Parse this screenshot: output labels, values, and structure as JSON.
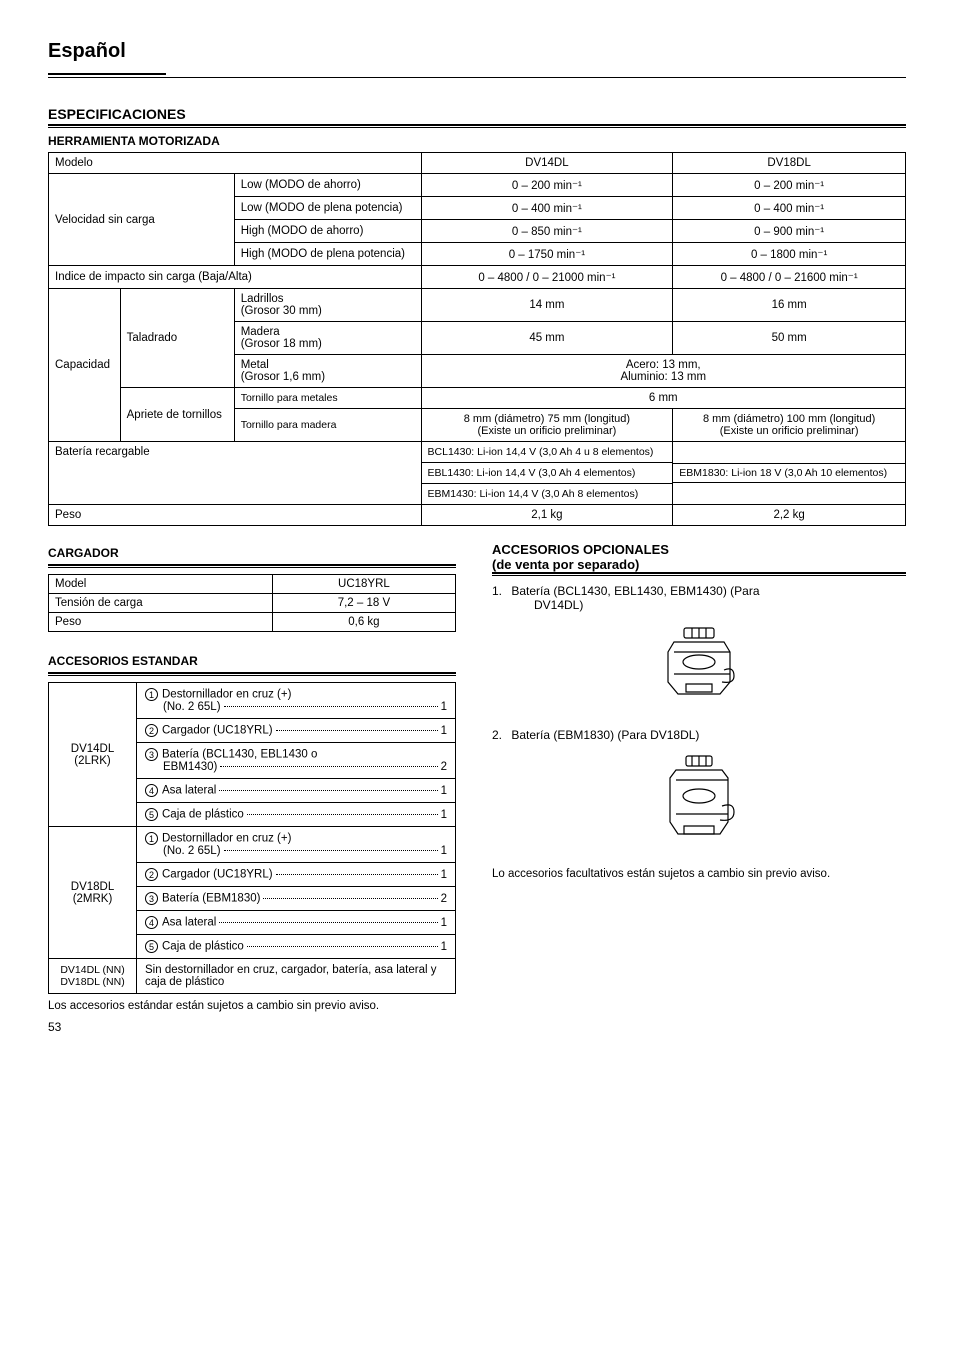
{
  "lang_header": "Español",
  "sections": {
    "espec": "ESPECIFICACIONES",
    "herramienta": "HERRAMIENTA MOTORIZADA",
    "cargador": "CARGADOR",
    "acc_estandar": "ACCESORIOS ESTANDAR",
    "acc_opcionales": "ACCESORIOS OPCIONALES",
    "acc_opcionales_sub": "(de venta por separado)"
  },
  "spec": {
    "rows": {
      "modelo": "Modelo",
      "velocidad": "Velocidad sin carga",
      "low_ahorro": "Low (MODO de ahorro)",
      "low_plena": "Low (MODO de plena potencia)",
      "high_ahorro": "High (MODO de ahorro)",
      "high_plena": "High (MODO de plena potencia)",
      "indice": "Indice de impacto sin carga (Baja/Alta)",
      "capacidad": "Capacidad",
      "taladrado": "Taladrado",
      "ladrillos": "Ladrillos\n(Grosor 30 mm)",
      "madera": "Madera\n(Grosor 18 mm)",
      "metal": "Metal\n(Grosor 1,6 mm)",
      "apriete": "Apriete de tornillos",
      "t_metales": "Tornillo para metales",
      "t_madera": "Tornillo para madera",
      "bateria": "Batería recargable",
      "peso": "Peso"
    },
    "cols": {
      "dv14": "DV14DL",
      "dv18": "DV18DL"
    },
    "vals": {
      "low_ahorro": {
        "dv14": "0 – 200 min⁻¹",
        "dv18": "0 – 200 min⁻¹"
      },
      "low_plena": {
        "dv14": "0 – 400 min⁻¹",
        "dv18": "0 – 400 min⁻¹"
      },
      "high_ahorro": {
        "dv14": "0 – 850 min⁻¹",
        "dv18": "0 – 900 min⁻¹"
      },
      "high_plena": {
        "dv14": "0 – 1750 min⁻¹",
        "dv18": "0 – 1800 min⁻¹"
      },
      "indice": {
        "dv14": "0 – 4800 / 0 – 21000 min⁻¹",
        "dv18": "0 – 4800 / 0 – 21600 min⁻¹"
      },
      "ladrillos": {
        "dv14": "14 mm",
        "dv18": "16 mm"
      },
      "madera": {
        "dv14": "45 mm",
        "dv18": "50 mm"
      },
      "metal": "Acero: 13 mm,\nAluminio: 13 mm",
      "t_metales": "6 mm",
      "t_madera": {
        "dv14": "8 mm (diámetro)   75 mm (longitud)\n(Existe un orificio preliminar)",
        "dv18": "8 mm (diámetro)   100 mm (longitud)\n(Existe un orificio preliminar)"
      },
      "bateria_dv14_1": "BCL1430: Li-ion 14,4 V (3,0 Ah 4 u 8 elementos)",
      "bateria_dv14_2": "EBL1430: Li-ion 14,4 V (3,0 Ah 4 elementos)",
      "bateria_dv14_3": "EBM1430: Li-ion 14,4 V (3,0 Ah 8 elementos)",
      "bateria_dv18": "EBM1830: Li-ion 18 V (3,0 Ah 10 elementos)",
      "peso": {
        "dv14": "2,1 kg",
        "dv18": "2,2 kg"
      }
    }
  },
  "charger": {
    "model_label": "Model",
    "model_val": "UC18YRL",
    "tension_label": "Tensión de carga",
    "tension_val": "7,2 – 18 V",
    "peso_label": "Peso",
    "peso_val": "0,6 kg"
  },
  "accessories": {
    "dv14": {
      "model": "DV14DL\n(2LRK)",
      "items": [
        {
          "n": "1",
          "label": "Destornillador en cruz (+)\n(No. 2   65L)",
          "qty": "1"
        },
        {
          "n": "2",
          "label": "Cargador (UC18YRL)",
          "qty": "1"
        },
        {
          "n": "3",
          "label": "Batería (BCL1430, EBL1430 o\nEBM1430)",
          "qty": "2"
        },
        {
          "n": "4",
          "label": "Asa lateral",
          "qty": "1"
        },
        {
          "n": "5",
          "label": "Caja de plástico",
          "qty": "1"
        }
      ]
    },
    "dv18": {
      "model": "DV18DL\n(2MRK)",
      "items": [
        {
          "n": "1",
          "label": "Destornillador en cruz (+)\n(No. 2   65L)",
          "qty": "1"
        },
        {
          "n": "2",
          "label": "Cargador (UC18YRL)",
          "qty": "1"
        },
        {
          "n": "3",
          "label": "Batería (EBM1830)",
          "qty": "2"
        },
        {
          "n": "4",
          "label": "Asa lateral",
          "qty": "1"
        },
        {
          "n": "5",
          "label": "Caja de plástico",
          "qty": "1"
        }
      ]
    },
    "nn": {
      "model": "DV14DL (NN)\nDV18DL (NN)",
      "text": "Sin destornillador en cruz, cargador, batería, asa lateral y caja de plástico"
    },
    "note": "Los accesorios estándar están sujetos a cambio sin previo aviso."
  },
  "optional": {
    "items": [
      {
        "n": "1.",
        "label": "Batería (BCL1430, EBL1430, EBM1430) (Para",
        "indent": "DV14DL)"
      },
      {
        "n": "2.",
        "label": "Batería (EBM1830) (Para DV18DL)",
        "indent": ""
      }
    ],
    "note": "Lo accesorios facultativos están sujetos a cambio sin previo aviso."
  },
  "page": "53"
}
